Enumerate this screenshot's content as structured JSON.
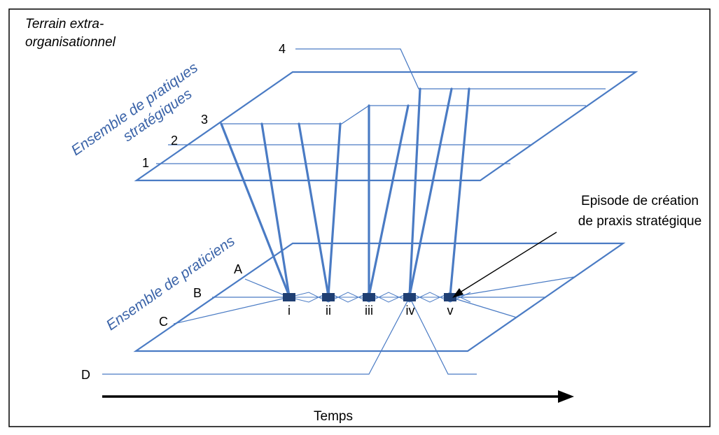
{
  "frame_title": {
    "line1": "Terrain extra-",
    "line2": "organisationnel"
  },
  "planes": {
    "top_label": {
      "line1": "Ensemble de pratiques",
      "line2": "stratégiques"
    },
    "bottom_label": "Ensemble de praticiens"
  },
  "practice_numbers": [
    "1",
    "2",
    "3",
    "4"
  ],
  "practitioner_letters": [
    "A",
    "B",
    "C",
    "D"
  ],
  "episodes": [
    "i",
    "ii",
    "iii",
    "iv",
    "v"
  ],
  "annotation": {
    "line1": "Episode de création",
    "line2": "de praxis stratégique"
  },
  "time_axis_label": "Temps",
  "colors": {
    "plane": "#4a7bc4",
    "link": "#4a7bc4",
    "episode_marker": "#1f3f73",
    "text_blue": "#3a63a8",
    "frame": "#000000"
  }
}
